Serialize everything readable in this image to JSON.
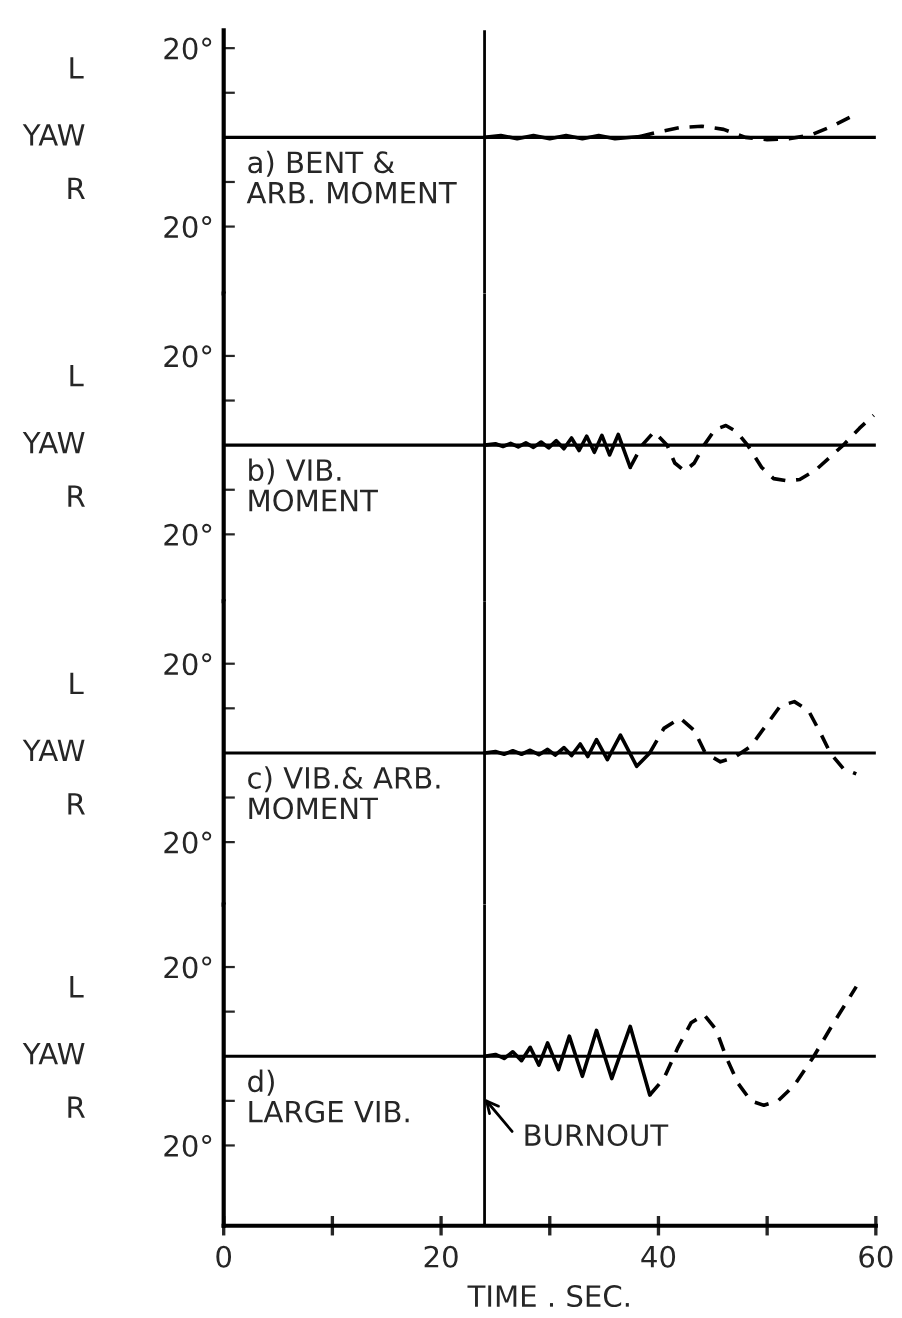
{
  "chart_data": [
    {
      "type": "line",
      "xlim": [
        0,
        60
      ],
      "ylim": [
        -35,
        24
      ],
      "tick_labels": "y",
      "ylabel": "YAW",
      "yticks": [
        {
          "value": -20,
          "label": "20°"
        },
        {
          "value": -10,
          "label": null
        },
        {
          "value": 10,
          "label": null
        },
        {
          "value": 20,
          "label": "20°"
        }
      ],
      "annotations": [
        "L",
        "R",
        "a) BENT &\nARB. MOMENT"
      ],
      "ref_lines": [
        {
          "axis": "y",
          "value": 0
        },
        {
          "axis": "x",
          "value": 24
        }
      ],
      "series": [
        {
          "color": "#000000",
          "line_style": "solid",
          "x": [
            24,
            25.5,
            27,
            28.5,
            30,
            31.5,
            33,
            34.5,
            36,
            38.3
          ],
          "values": [
            0,
            0.4,
            -0.3,
            0.4,
            -0.3,
            0.4,
            -0.3,
            0.4,
            -0.3,
            0.2
          ]
        },
        {
          "color": "#000000",
          "line_style": "dashed",
          "x": [
            38.3,
            40,
            42,
            44,
            46,
            48,
            50,
            52,
            54,
            56,
            58
          ],
          "values": [
            0.2,
            1.2,
            2.2,
            2.5,
            1.8,
            0,
            -0.5,
            -0.3,
            0.5,
            2.5,
            5
          ]
        }
      ]
    },
    {
      "type": "line",
      "xlim": [
        0,
        60
      ],
      "ylim": [
        -35,
        34
      ],
      "tick_labels": "y",
      "ylabel": "YAW",
      "yticks": [
        {
          "value": -20,
          "label": "20°"
        },
        {
          "value": -10,
          "label": null
        },
        {
          "value": 10,
          "label": null
        },
        {
          "value": 20,
          "label": "20°"
        }
      ],
      "annotations": [
        "L",
        "R",
        "b) VIB.\nMOMENT"
      ],
      "ref_lines": [
        {
          "axis": "y",
          "value": 0
        },
        {
          "axis": "x",
          "value": 24
        }
      ],
      "series": [
        {
          "color": "#000000",
          "line_style": "solid",
          "x": [
            24,
            25,
            25.7,
            26.4,
            27.1,
            27.8,
            28.5,
            29.2,
            29.9,
            30.6,
            31.3,
            32,
            32.7,
            33.4,
            34.1,
            34.8,
            35.5,
            36.3,
            37.4
          ],
          "values": [
            0,
            0.3,
            -0.3,
            0.4,
            -0.4,
            0.5,
            -0.5,
            0.7,
            -0.6,
            1,
            -0.8,
            1.6,
            -1.2,
            2,
            -1.6,
            2.2,
            -2.2,
            2.4,
            -5
          ]
        },
        {
          "color": "#000000",
          "line_style": "dashed",
          "x": [
            37.4,
            38.5,
            39.6,
            40.8,
            41.5,
            42.4,
            43.3,
            44.2,
            45.2,
            46.2,
            47.2,
            48.2,
            49.5,
            50.6,
            51.8,
            53,
            54.5,
            57,
            58.5,
            59.8
          ],
          "values": [
            -5,
            0,
            3,
            0,
            -4,
            -5.8,
            -4,
            0,
            3.5,
            4.4,
            3,
            0,
            -5,
            -7.5,
            -8,
            -7.7,
            -5.5,
            0,
            3.8,
            6.7
          ]
        }
      ]
    },
    {
      "type": "line",
      "xlim": [
        0,
        60
      ],
      "ylim": [
        -34,
        34
      ],
      "tick_labels": "y",
      "ylabel": "YAW",
      "yticks": [
        {
          "value": -20,
          "label": "20°"
        },
        {
          "value": -10,
          "label": null
        },
        {
          "value": 10,
          "label": null
        },
        {
          "value": 20,
          "label": "20°"
        }
      ],
      "annotations": [
        "L",
        "R",
        "c) VIB.& ARB.\nMOMENT"
      ],
      "ref_lines": [
        {
          "axis": "y",
          "value": 0
        },
        {
          "axis": "x",
          "value": 24
        }
      ],
      "series": [
        {
          "color": "#000000",
          "line_style": "solid",
          "x": [
            24,
            25,
            25.8,
            26.6,
            27.4,
            28.2,
            29,
            29.8,
            30.5,
            31.3,
            32,
            32.8,
            33.5,
            34.3,
            35.3,
            36.5,
            38,
            39.2
          ],
          "values": [
            0,
            0.3,
            -0.3,
            0.5,
            -0.3,
            0.6,
            -0.4,
            0.8,
            -0.5,
            1.2,
            -0.6,
            2,
            -0.8,
            3,
            -1.5,
            4,
            -3,
            0
          ]
        },
        {
          "color": "#000000",
          "line_style": "dashed",
          "x": [
            39.2,
            40.5,
            42,
            43.3,
            44.3,
            45.7,
            47,
            48.5,
            50,
            51.2,
            52.5,
            53.8,
            55,
            55.8,
            57,
            58.2
          ],
          "values": [
            0,
            5.5,
            7.8,
            5,
            0,
            -2,
            -1,
            1.5,
            6.5,
            10.5,
            11.5,
            9.5,
            4,
            0,
            -3.5,
            -4.7
          ]
        }
      ]
    },
    {
      "type": "line",
      "xlim": [
        0,
        60
      ],
      "ylim": [
        -38,
        34
      ],
      "ylabel": "YAW",
      "xlabel": "TIME . SEC.",
      "xticks": [
        0,
        {
          "value": 10,
          "label": null
        },
        20,
        {
          "value": 30,
          "label": null
        },
        40,
        {
          "value": 50,
          "label": null
        },
        60
      ],
      "yticks": [
        {
          "value": -20,
          "label": "20°"
        },
        {
          "value": -10,
          "label": null
        },
        {
          "value": 10,
          "label": null
        },
        {
          "value": 20,
          "label": "20°"
        }
      ],
      "annotations": [
        "L",
        "R",
        "d)\nLARGE VIB."
      ],
      "ref_lines": [
        {
          "axis": "y",
          "value": 0
        },
        {
          "axis": "x",
          "value": 24,
          "label": "BURNOUT"
        }
      ],
      "series": [
        {
          "color": "#000000",
          "line_style": "solid",
          "x": [
            24,
            25,
            25.8,
            26.6,
            27.4,
            28.2,
            29,
            29.8,
            30.8,
            31.8,
            33,
            34.3,
            35.7,
            37.4,
            39.2
          ],
          "values": [
            0,
            0.4,
            -0.5,
            1,
            -1,
            2,
            -2,
            3,
            -3,
            4.5,
            -4.5,
            5.8,
            -5,
            6.7,
            -8.7
          ]
        },
        {
          "color": "#000000",
          "line_style": "dashed",
          "x": [
            39.2,
            40.5,
            41.8,
            43,
            44.2,
            45.3,
            46.2,
            47.3,
            48.5,
            49.7,
            51,
            52.5,
            54.3,
            56,
            58.2
          ],
          "values": [
            -8.7,
            -5,
            2,
            7.5,
            9.3,
            6,
            0,
            -6,
            -10,
            -11,
            -10,
            -6.5,
            0,
            7,
            15.6
          ]
        }
      ]
    }
  ]
}
